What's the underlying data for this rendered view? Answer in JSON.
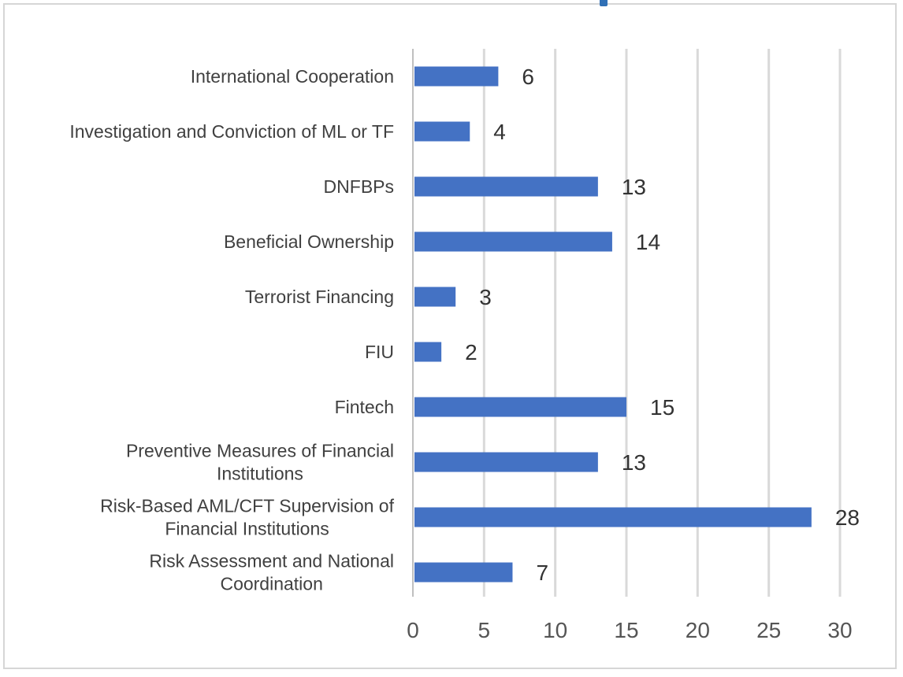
{
  "chart_data": {
    "type": "bar",
    "orientation": "horizontal",
    "title": "",
    "xlabel": "",
    "ylabel": "",
    "categories": [
      "International Cooperation",
      "Investigation and Conviction of ML or TF",
      "DNFBPs",
      "Beneficial Ownership",
      "Terrorist Financing",
      "FIU",
      "Fintech",
      "Preventive Measures of Financial Institutions",
      "Risk-Based AML/CFT Supervision of Financial Institutions",
      "Risk Assessment and National Coordination"
    ],
    "category_lines": [
      [
        "International Cooperation"
      ],
      [
        "Investigation and Conviction of ML or TF"
      ],
      [
        "DNFBPs"
      ],
      [
        "Beneficial Ownership"
      ],
      [
        "Terrorist Financing"
      ],
      [
        "FIU"
      ],
      [
        "Fintech"
      ],
      [
        "Preventive Measures of Financial",
        "Institutions"
      ],
      [
        "Risk-Based AML/CFT Supervision of",
        "Financial Institutions"
      ],
      [
        "Risk Assessment and National",
        "Coordination"
      ]
    ],
    "values": [
      6,
      4,
      13,
      14,
      3,
      2,
      15,
      13,
      28,
      7
    ],
    "xlim": [
      0,
      30
    ],
    "xticks": [
      "0",
      "5",
      "10",
      "15",
      "20",
      "25",
      "30"
    ],
    "grid": true,
    "data_labels": true,
    "legend": "none",
    "bar_color": "#4472c4",
    "grid_color": "#d9d9d9"
  }
}
